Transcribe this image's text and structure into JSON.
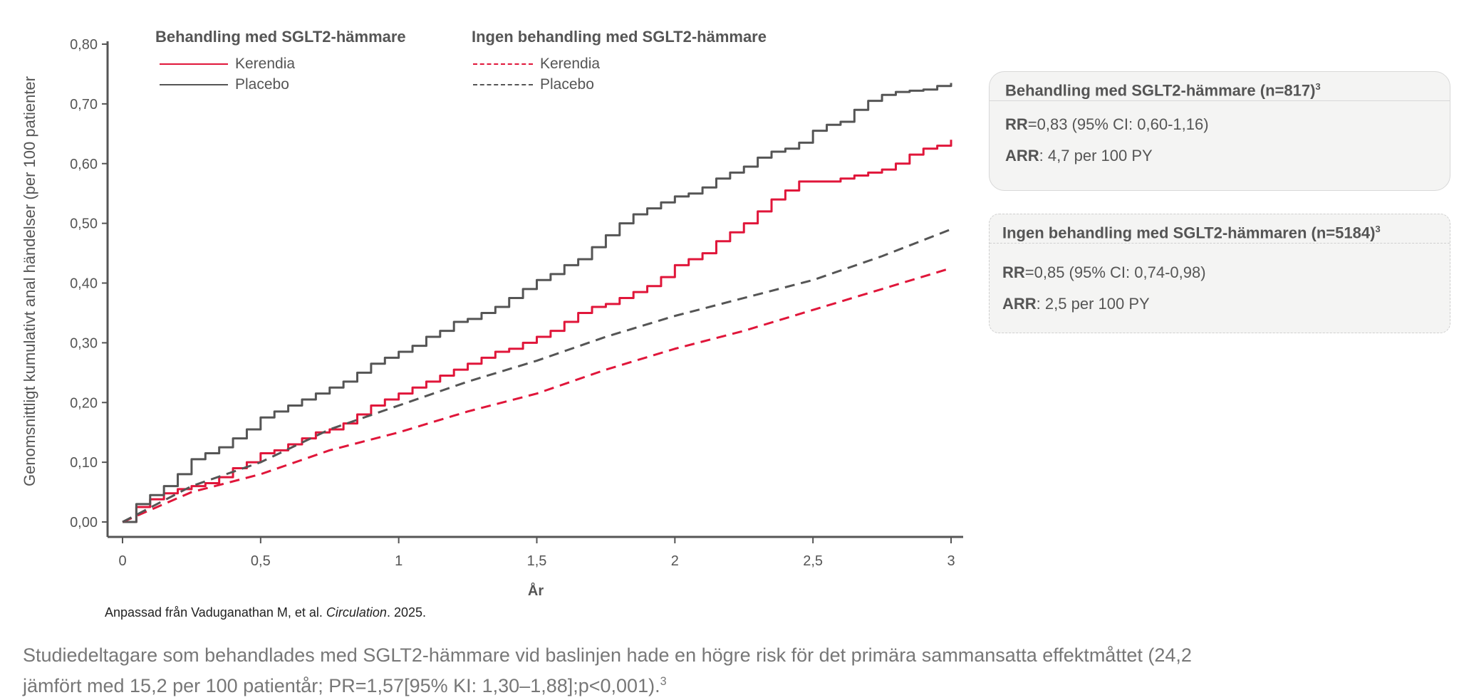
{
  "chart_data": {
    "type": "line",
    "xlabel": "År",
    "ylabel": "Genomsnittligt kumulativt anal händelser (per 100 patienter",
    "xlim": [
      0,
      3
    ],
    "ylim": [
      0,
      0.8
    ],
    "x_ticks": [
      "0",
      "0,5",
      "1",
      "1,5",
      "2",
      "2,5",
      "3"
    ],
    "x_tick_values": [
      0,
      0.5,
      1,
      1.5,
      2,
      2.5,
      3
    ],
    "y_ticks": [
      "0,00",
      "0,10",
      "0,20",
      "0,30",
      "0,40",
      "0,50",
      "0,60",
      "0,70",
      "0,80"
    ],
    "y_tick_values": [
      0,
      0.1,
      0.2,
      0.3,
      0.4,
      0.5,
      0.6,
      0.7,
      0.8
    ],
    "legend_groups": [
      {
        "title": "Behandling med SGLT2-hämmare",
        "items": [
          "Kerendia",
          "Placebo"
        ]
      },
      {
        "title": "Ingen behandling med SGLT2-hämmare",
        "items": [
          "Kerendia",
          "Placebo"
        ]
      }
    ],
    "series": [
      {
        "name": "Kerendia",
        "group": "Behandling med SGLT2-hämmare",
        "color": "#e0163a",
        "dash": "solid",
        "x": [
          0,
          0.05,
          0.1,
          0.15,
          0.2,
          0.25,
          0.3,
          0.35,
          0.4,
          0.45,
          0.5,
          0.55,
          0.6,
          0.65,
          0.7,
          0.75,
          0.8,
          0.85,
          0.9,
          0.95,
          1.0,
          1.05,
          1.1,
          1.15,
          1.2,
          1.25,
          1.3,
          1.35,
          1.4,
          1.45,
          1.5,
          1.55,
          1.6,
          1.65,
          1.7,
          1.75,
          1.8,
          1.85,
          1.9,
          1.95,
          2.0,
          2.05,
          2.1,
          2.15,
          2.2,
          2.25,
          2.3,
          2.35,
          2.4,
          2.45,
          2.5,
          2.55,
          2.6,
          2.65,
          2.7,
          2.75,
          2.8,
          2.85,
          2.9,
          2.95,
          3.0
        ],
        "y": [
          0,
          0.025,
          0.038,
          0.048,
          0.055,
          0.06,
          0.065,
          0.075,
          0.09,
          0.1,
          0.115,
          0.12,
          0.13,
          0.14,
          0.15,
          0.155,
          0.165,
          0.18,
          0.195,
          0.205,
          0.215,
          0.225,
          0.235,
          0.245,
          0.255,
          0.265,
          0.275,
          0.285,
          0.29,
          0.3,
          0.31,
          0.32,
          0.335,
          0.35,
          0.36,
          0.365,
          0.375,
          0.385,
          0.395,
          0.41,
          0.43,
          0.44,
          0.45,
          0.47,
          0.485,
          0.5,
          0.52,
          0.54,
          0.555,
          0.57,
          0.57,
          0.57,
          0.575,
          0.58,
          0.585,
          0.59,
          0.6,
          0.615,
          0.625,
          0.63,
          0.64
        ]
      },
      {
        "name": "Placebo",
        "group": "Behandling med SGLT2-hämmare",
        "color": "#555555",
        "dash": "solid",
        "x": [
          0,
          0.05,
          0.1,
          0.15,
          0.2,
          0.25,
          0.3,
          0.35,
          0.4,
          0.45,
          0.5,
          0.55,
          0.6,
          0.65,
          0.7,
          0.75,
          0.8,
          0.85,
          0.9,
          0.95,
          1.0,
          1.05,
          1.1,
          1.15,
          1.2,
          1.25,
          1.3,
          1.35,
          1.4,
          1.45,
          1.5,
          1.55,
          1.6,
          1.65,
          1.7,
          1.75,
          1.8,
          1.85,
          1.9,
          1.95,
          2.0,
          2.05,
          2.1,
          2.15,
          2.2,
          2.25,
          2.3,
          2.35,
          2.4,
          2.45,
          2.5,
          2.55,
          2.6,
          2.65,
          2.7,
          2.75,
          2.8,
          2.85,
          2.9,
          2.95,
          3.0
        ],
        "y": [
          0,
          0.03,
          0.045,
          0.06,
          0.08,
          0.105,
          0.115,
          0.125,
          0.14,
          0.155,
          0.175,
          0.185,
          0.195,
          0.205,
          0.215,
          0.225,
          0.235,
          0.25,
          0.265,
          0.275,
          0.285,
          0.295,
          0.31,
          0.32,
          0.335,
          0.34,
          0.35,
          0.36,
          0.375,
          0.39,
          0.405,
          0.415,
          0.43,
          0.44,
          0.46,
          0.48,
          0.5,
          0.515,
          0.525,
          0.535,
          0.545,
          0.55,
          0.56,
          0.575,
          0.585,
          0.595,
          0.61,
          0.62,
          0.625,
          0.635,
          0.655,
          0.665,
          0.67,
          0.69,
          0.705,
          0.715,
          0.72,
          0.722,
          0.724,
          0.73,
          0.735
        ]
      },
      {
        "name": "Kerendia",
        "group": "Ingen behandling med SGLT2-hämmare",
        "color": "#e0163a",
        "dash": "dashed",
        "x": [
          0,
          0.25,
          0.5,
          0.75,
          1.0,
          1.25,
          1.5,
          1.75,
          2.0,
          2.25,
          2.5,
          2.75,
          3.0
        ],
        "y": [
          0,
          0.05,
          0.08,
          0.12,
          0.15,
          0.185,
          0.215,
          0.255,
          0.29,
          0.32,
          0.355,
          0.39,
          0.425
        ]
      },
      {
        "name": "Placebo",
        "group": "Ingen behandling med SGLT2-hämmare",
        "color": "#555555",
        "dash": "dashed",
        "x": [
          0,
          0.25,
          0.5,
          0.75,
          1.0,
          1.25,
          1.5,
          1.75,
          2.0,
          2.25,
          2.5,
          2.75,
          3.0
        ],
        "y": [
          0,
          0.06,
          0.1,
          0.155,
          0.195,
          0.235,
          0.27,
          0.31,
          0.345,
          0.375,
          0.405,
          0.445,
          0.49
        ]
      }
    ]
  },
  "callouts": [
    {
      "title": "Behandling med SGLT2-hämmare (n=817)",
      "title_sup": "3",
      "rr_label": "RR",
      "rr_text": "=0,83 (95% CI: 0,60-1,16)",
      "arr_label": "ARR",
      "arr_text": ": 4,7 per 100 PY"
    },
    {
      "title": "Ingen behandling med SGLT2-hämmaren (n=5184)",
      "title_sup": "3",
      "rr_label": "RR",
      "rr_text": "=0,85 (95% CI: 0,74-0,98)",
      "arr_label": "ARR",
      "arr_text": ": 2,5 per 100 PY"
    }
  ],
  "source": {
    "prefix": "Anpassad från Vaduganathan M, et al. ",
    "journal": "Circulation",
    "suffix": ". 2025."
  },
  "footnote": {
    "text": "Studiedeltagare som behandlades med SGLT2-hämmare vid baslinjen hade en högre risk för det primära sammansatta effektmåttet (24,2 jämfört med 15,2 per 100 patientår; PR=1,57[95% KI: 1,30–1,88];p<0,001).",
    "sup": "3"
  }
}
